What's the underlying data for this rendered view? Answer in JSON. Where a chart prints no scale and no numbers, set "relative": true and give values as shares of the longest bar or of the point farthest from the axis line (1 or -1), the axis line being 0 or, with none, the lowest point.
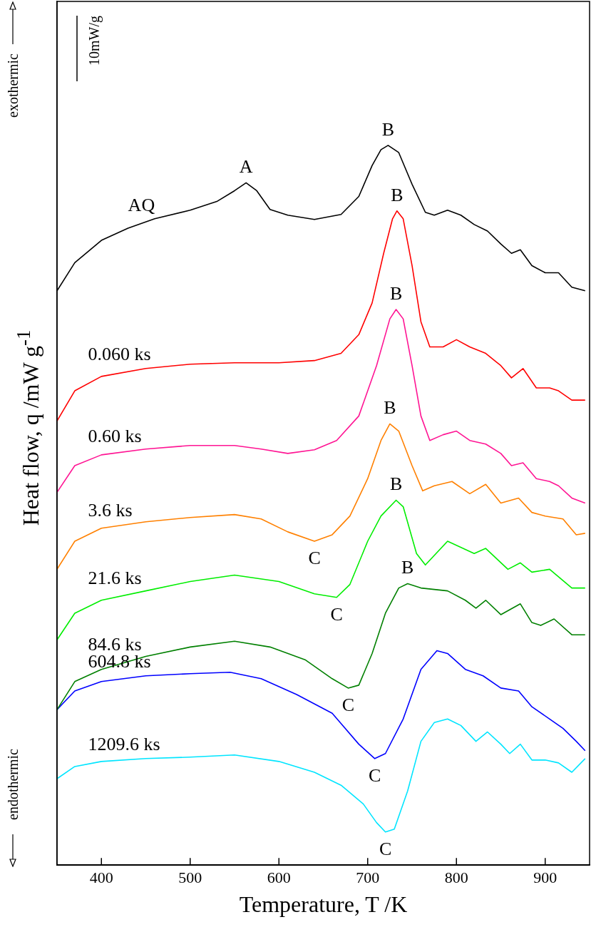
{
  "chart_data": {
    "type": "line",
    "relative": true,
    "xlabel": "Temperature, T /K",
    "ylabel": "Heat flow, q /mW g$^{-1}$",
    "xlim": [
      350,
      950
    ],
    "xticks": [
      400,
      500,
      600,
      700,
      800,
      900
    ],
    "legend": false,
    "grid": false,
    "marker": "none",
    "line_style": "solid",
    "annotations": [
      "exothermic",
      "endothermic",
      "10mW/g",
      {
        "text": "A",
        "x": 563,
        "y": 0.948
      },
      {
        "text": "B",
        "x": 723,
        "y": 1.0
      },
      {
        "text": "B",
        "x": 733,
        "y": 0.909
      },
      {
        "text": "B",
        "x": 732,
        "y": 0.772
      },
      {
        "text": "B",
        "x": 725,
        "y": 0.613
      },
      {
        "text": "B",
        "x": 732,
        "y": 0.507
      },
      {
        "text": "B",
        "x": 745,
        "y": 0.391
      },
      {
        "text": "C",
        "x": 640,
        "y": 0.45
      },
      {
        "text": "C",
        "x": 665,
        "y": 0.372
      },
      {
        "text": "C",
        "x": 678,
        "y": 0.246
      },
      {
        "text": "C",
        "x": 708,
        "y": 0.148
      },
      {
        "text": "C",
        "x": 720,
        "y": 0.046
      }
    ],
    "series": [
      {
        "name": "AQ",
        "color": "#000000",
        "x": [
          350,
          370,
          400,
          430,
          460,
          500,
          530,
          550,
          563,
          575,
          590,
          610,
          640,
          670,
          690,
          705,
          715,
          723,
          735,
          750,
          765,
          775,
          790,
          805,
          820,
          835,
          850,
          862,
          872,
          885,
          900,
          915,
          930,
          945
        ],
        "values": [
          0.798,
          0.837,
          0.868,
          0.885,
          0.898,
          0.91,
          0.922,
          0.937,
          0.948,
          0.937,
          0.911,
          0.903,
          0.897,
          0.904,
          0.929,
          0.972,
          0.994,
          1.0,
          0.99,
          0.946,
          0.907,
          0.903,
          0.91,
          0.903,
          0.89,
          0.881,
          0.863,
          0.85,
          0.855,
          0.833,
          0.823,
          0.823,
          0.803,
          0.798
        ]
      },
      {
        "name": "0.060 ks",
        "color": "#ff0000",
        "x": [
          350,
          370,
          400,
          450,
          500,
          550,
          600,
          640,
          670,
          690,
          705,
          718,
          728,
          733,
          740,
          750,
          760,
          770,
          785,
          800,
          815,
          833,
          850,
          862,
          875,
          890,
          905,
          915,
          930,
          945
        ],
        "values": [
          0.617,
          0.659,
          0.679,
          0.69,
          0.696,
          0.698,
          0.698,
          0.701,
          0.711,
          0.737,
          0.781,
          0.85,
          0.898,
          0.909,
          0.898,
          0.833,
          0.755,
          0.72,
          0.72,
          0.73,
          0.72,
          0.711,
          0.694,
          0.677,
          0.69,
          0.663,
          0.663,
          0.659,
          0.646,
          0.646
        ]
      },
      {
        "name": "0.60 ks",
        "color": "#ff1493",
        "x": [
          350,
          370,
          400,
          450,
          500,
          550,
          580,
          610,
          640,
          665,
          690,
          710,
          725,
          732,
          740,
          750,
          760,
          770,
          785,
          800,
          815,
          833,
          850,
          862,
          875,
          890,
          905,
          915,
          930,
          945
        ],
        "values": [
          0.518,
          0.555,
          0.57,
          0.578,
          0.583,
          0.583,
          0.578,
          0.572,
          0.577,
          0.59,
          0.624,
          0.694,
          0.759,
          0.772,
          0.759,
          0.694,
          0.624,
          0.59,
          0.598,
          0.603,
          0.59,
          0.585,
          0.572,
          0.555,
          0.559,
          0.537,
          0.533,
          0.527,
          0.51,
          0.503
        ]
      },
      {
        "name": "3.6 ks",
        "color": "#ff8000",
        "x": [
          350,
          370,
          400,
          450,
          500,
          550,
          580,
          610,
          640,
          660,
          680,
          700,
          715,
          725,
          735,
          750,
          762,
          775,
          795,
          815,
          833,
          850,
          870,
          885,
          900,
          920,
          935,
          945
        ],
        "values": [
          0.411,
          0.45,
          0.468,
          0.477,
          0.483,
          0.487,
          0.481,
          0.463,
          0.45,
          0.459,
          0.485,
          0.537,
          0.59,
          0.613,
          0.603,
          0.555,
          0.52,
          0.527,
          0.533,
          0.516,
          0.529,
          0.503,
          0.51,
          0.49,
          0.485,
          0.481,
          0.459,
          0.461
        ]
      },
      {
        "name": "21.6 ks",
        "color": "#00ee00",
        "x": [
          350,
          370,
          400,
          450,
          500,
          550,
          600,
          640,
          665,
          680,
          700,
          715,
          732,
          740,
          755,
          765,
          790,
          820,
          833,
          858,
          872,
          885,
          905,
          930,
          945
        ],
        "values": [
          0.313,
          0.35,
          0.368,
          0.381,
          0.394,
          0.403,
          0.394,
          0.377,
          0.372,
          0.39,
          0.45,
          0.485,
          0.507,
          0.498,
          0.433,
          0.417,
          0.45,
          0.433,
          0.44,
          0.411,
          0.42,
          0.407,
          0.411,
          0.385,
          0.385
        ]
      },
      {
        "name": "84.6 ks",
        "color": "#008000",
        "x": [
          350,
          370,
          400,
          450,
          500,
          550,
          590,
          630,
          660,
          678,
          690,
          705,
          720,
          735,
          745,
          760,
          790,
          810,
          822,
          833,
          850,
          872,
          885,
          895,
          910,
          930,
          945
        ],
        "values": [
          0.216,
          0.255,
          0.272,
          0.29,
          0.303,
          0.311,
          0.303,
          0.285,
          0.259,
          0.246,
          0.25,
          0.294,
          0.35,
          0.385,
          0.391,
          0.385,
          0.381,
          0.368,
          0.357,
          0.368,
          0.348,
          0.363,
          0.337,
          0.333,
          0.342,
          0.32,
          0.32
        ]
      },
      {
        "name": "604.8 ks",
        "color": "#0000ff",
        "x": [
          350,
          370,
          400,
          450,
          500,
          545,
          580,
          620,
          660,
          690,
          708,
          720,
          740,
          760,
          778,
          790,
          810,
          830,
          850,
          870,
          885,
          905,
          920,
          935,
          945
        ],
        "values": [
          0.216,
          0.242,
          0.255,
          0.263,
          0.266,
          0.268,
          0.259,
          0.237,
          0.211,
          0.168,
          0.148,
          0.155,
          0.203,
          0.272,
          0.298,
          0.294,
          0.272,
          0.263,
          0.246,
          0.242,
          0.22,
          0.203,
          0.19,
          0.172,
          0.159
        ]
      },
      {
        "name": "1209.6 ks",
        "color": "#00e5ff",
        "x": [
          350,
          370,
          400,
          450,
          500,
          550,
          600,
          640,
          670,
          695,
          710,
          720,
          730,
          745,
          760,
          775,
          790,
          805,
          822,
          835,
          850,
          860,
          872,
          885,
          900,
          915,
          930,
          945
        ],
        "values": [
          0.12,
          0.137,
          0.144,
          0.148,
          0.15,
          0.153,
          0.144,
          0.129,
          0.111,
          0.085,
          0.059,
          0.046,
          0.05,
          0.103,
          0.172,
          0.198,
          0.203,
          0.194,
          0.172,
          0.185,
          0.168,
          0.155,
          0.168,
          0.146,
          0.146,
          0.142,
          0.129,
          0.148
        ]
      }
    ]
  }
}
